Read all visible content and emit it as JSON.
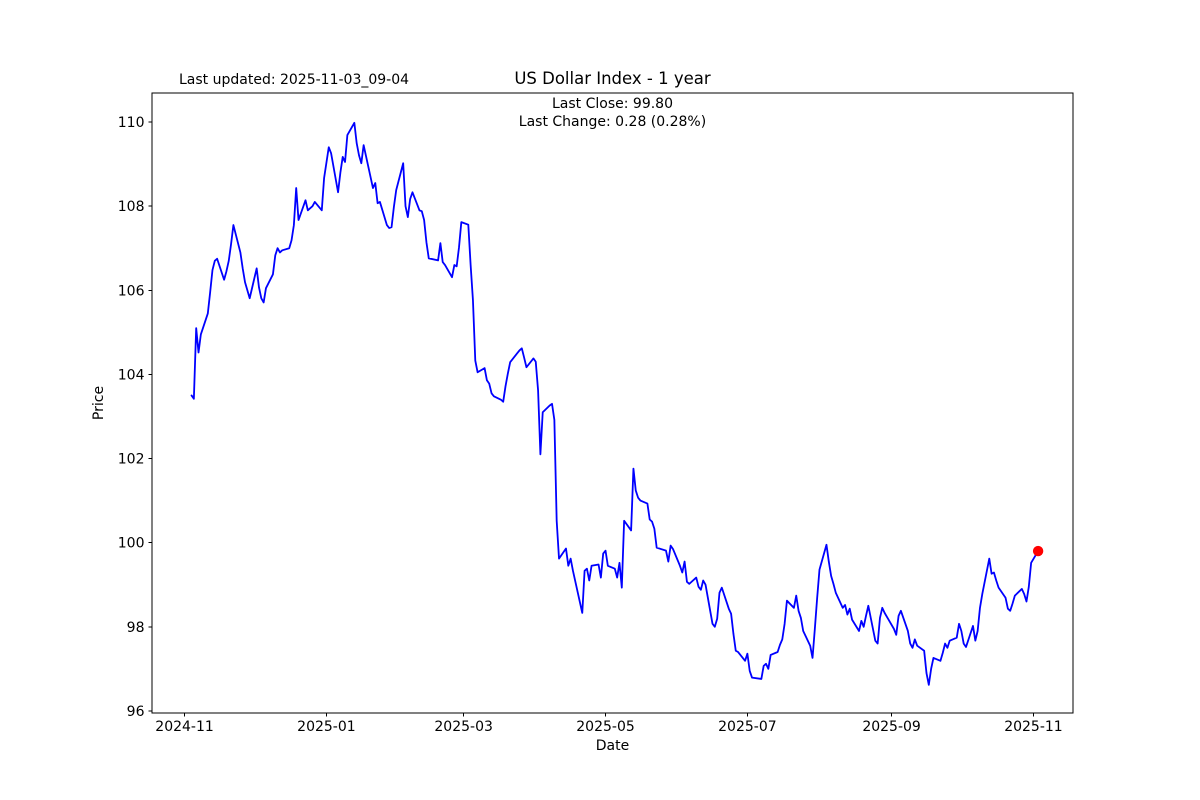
{
  "header": {
    "title": "US Dollar Index - 1 year",
    "last_updated": "Last updated: 2025-11-03_09-04",
    "last_close_label": "Last Close: 99.80",
    "last_change_label": "Last Change: 0.28 (0.28%)"
  },
  "chart_data": {
    "type": "line",
    "title": "US Dollar Index - 1 year",
    "xlabel": "Date",
    "ylabel": "Price",
    "legend": "none",
    "grid": false,
    "last_close": 99.8,
    "last_change": 0.28,
    "last_change_pct": "0.28%",
    "line_color": "#0000ff",
    "marker_color": "#ff0000",
    "text_color": "#000000",
    "background_color": "#ffffff",
    "y_ticks": [
      96,
      98,
      100,
      102,
      104,
      106,
      108,
      110
    ],
    "x_tick_labels": [
      "2024-11",
      "2025-01",
      "2025-03",
      "2025-05",
      "2025-07",
      "2025-09",
      "2025-11"
    ],
    "ylim": [
      95.95,
      110.69
    ],
    "xlim": [
      "2024-10-18",
      "2025-11-18"
    ],
    "series": [
      {
        "name": "US Dollar Index",
        "points": [
          [
            "2024-11-04",
            103.5
          ],
          [
            "2024-11-05",
            103.42
          ],
          [
            "2024-11-06",
            105.1
          ],
          [
            "2024-11-07",
            104.52
          ],
          [
            "2024-11-08",
            104.95
          ],
          [
            "2024-11-11",
            105.45
          ],
          [
            "2024-11-12",
            105.95
          ],
          [
            "2024-11-13",
            106.48
          ],
          [
            "2024-11-14",
            106.7
          ],
          [
            "2024-11-15",
            106.75
          ],
          [
            "2024-11-18",
            106.25
          ],
          [
            "2024-11-19",
            106.45
          ],
          [
            "2024-11-20",
            106.7
          ],
          [
            "2024-11-21",
            107.1
          ],
          [
            "2024-11-22",
            107.55
          ],
          [
            "2024-11-25",
            106.9
          ],
          [
            "2024-11-26",
            106.52
          ],
          [
            "2024-11-27",
            106.19
          ],
          [
            "2024-11-29",
            105.81
          ],
          [
            "2024-12-02",
            106.52
          ],
          [
            "2024-12-03",
            106.07
          ],
          [
            "2024-12-04",
            105.81
          ],
          [
            "2024-12-05",
            105.71
          ],
          [
            "2024-12-06",
            106.05
          ],
          [
            "2024-12-09",
            106.38
          ],
          [
            "2024-12-10",
            106.83
          ],
          [
            "2024-12-11",
            107.0
          ],
          [
            "2024-12-12",
            106.9
          ],
          [
            "2024-12-13",
            106.95
          ],
          [
            "2024-12-16",
            107.0
          ],
          [
            "2024-12-17",
            107.19
          ],
          [
            "2024-12-18",
            107.55
          ],
          [
            "2024-12-19",
            108.43
          ],
          [
            "2024-12-20",
            107.67
          ],
          [
            "2024-12-23",
            108.14
          ],
          [
            "2024-12-24",
            107.9
          ],
          [
            "2024-12-26",
            108.0
          ],
          [
            "2024-12-27",
            108.1
          ],
          [
            "2024-12-30",
            107.9
          ],
          [
            "2024-12-31",
            108.67
          ],
          [
            "2025-01-02",
            109.4
          ],
          [
            "2025-01-03",
            109.26
          ],
          [
            "2025-01-06",
            108.33
          ],
          [
            "2025-01-07",
            108.8
          ],
          [
            "2025-01-08",
            109.17
          ],
          [
            "2025-01-09",
            109.05
          ],
          [
            "2025-01-10",
            109.69
          ],
          [
            "2025-01-13",
            109.98
          ],
          [
            "2025-01-14",
            109.5
          ],
          [
            "2025-01-15",
            109.21
          ],
          [
            "2025-01-16",
            109.02
          ],
          [
            "2025-01-17",
            109.45
          ],
          [
            "2025-01-21",
            108.43
          ],
          [
            "2025-01-22",
            108.55
          ],
          [
            "2025-01-23",
            108.07
          ],
          [
            "2025-01-24",
            108.1
          ],
          [
            "2025-01-27",
            107.55
          ],
          [
            "2025-01-28",
            107.48
          ],
          [
            "2025-01-29",
            107.5
          ],
          [
            "2025-01-30",
            107.98
          ],
          [
            "2025-01-31",
            108.38
          ],
          [
            "2025-02-03",
            109.02
          ],
          [
            "2025-02-04",
            108.0
          ],
          [
            "2025-02-05",
            107.74
          ],
          [
            "2025-02-06",
            108.17
          ],
          [
            "2025-02-07",
            108.33
          ],
          [
            "2025-02-10",
            107.9
          ],
          [
            "2025-02-11",
            107.88
          ],
          [
            "2025-02-12",
            107.67
          ],
          [
            "2025-02-13",
            107.14
          ],
          [
            "2025-02-14",
            106.76
          ],
          [
            "2025-02-18",
            106.71
          ],
          [
            "2025-02-19",
            107.12
          ],
          [
            "2025-02-20",
            106.67
          ],
          [
            "2025-02-21",
            106.6
          ],
          [
            "2025-02-24",
            106.31
          ],
          [
            "2025-02-25",
            106.6
          ],
          [
            "2025-02-26",
            106.57
          ],
          [
            "2025-02-27",
            107.02
          ],
          [
            "2025-02-28",
            107.62
          ],
          [
            "2025-03-03",
            107.56
          ],
          [
            "2025-03-04",
            106.6
          ],
          [
            "2025-03-05",
            105.76
          ],
          [
            "2025-03-06",
            104.33
          ],
          [
            "2025-03-07",
            104.05
          ],
          [
            "2025-03-10",
            104.15
          ],
          [
            "2025-03-11",
            103.86
          ],
          [
            "2025-03-12",
            103.78
          ],
          [
            "2025-03-13",
            103.55
          ],
          [
            "2025-03-14",
            103.48
          ],
          [
            "2025-03-17",
            103.4
          ],
          [
            "2025-03-18",
            103.35
          ],
          [
            "2025-03-19",
            103.72
          ],
          [
            "2025-03-20",
            104.02
          ],
          [
            "2025-03-21",
            104.29
          ],
          [
            "2025-03-24",
            104.5
          ],
          [
            "2025-03-25",
            104.57
          ],
          [
            "2025-03-26",
            104.62
          ],
          [
            "2025-03-27",
            104.4
          ],
          [
            "2025-03-28",
            104.17
          ],
          [
            "2025-03-31",
            104.38
          ],
          [
            "2025-04-01",
            104.3
          ],
          [
            "2025-04-02",
            103.62
          ],
          [
            "2025-04-03",
            102.1
          ],
          [
            "2025-04-04",
            103.1
          ],
          [
            "2025-04-07",
            103.26
          ],
          [
            "2025-04-08",
            103.3
          ],
          [
            "2025-04-09",
            102.92
          ],
          [
            "2025-04-10",
            100.52
          ],
          [
            "2025-04-11",
            99.62
          ],
          [
            "2025-04-14",
            99.86
          ],
          [
            "2025-04-15",
            99.45
          ],
          [
            "2025-04-16",
            99.62
          ],
          [
            "2025-04-17",
            99.33
          ],
          [
            "2025-04-21",
            98.33
          ],
          [
            "2025-04-22",
            99.33
          ],
          [
            "2025-04-23",
            99.38
          ],
          [
            "2025-04-24",
            99.1
          ],
          [
            "2025-04-25",
            99.45
          ],
          [
            "2025-04-28",
            99.48
          ],
          [
            "2025-04-29",
            99.17
          ],
          [
            "2025-04-30",
            99.74
          ],
          [
            "2025-05-01",
            99.81
          ],
          [
            "2025-05-02",
            99.45
          ],
          [
            "2025-05-05",
            99.38
          ],
          [
            "2025-05-06",
            99.17
          ],
          [
            "2025-05-07",
            99.52
          ],
          [
            "2025-05-08",
            98.93
          ],
          [
            "2025-05-09",
            100.52
          ],
          [
            "2025-05-12",
            100.29
          ],
          [
            "2025-05-13",
            101.76
          ],
          [
            "2025-05-14",
            101.24
          ],
          [
            "2025-05-15",
            101.07
          ],
          [
            "2025-05-16",
            101.0
          ],
          [
            "2025-05-19",
            100.93
          ],
          [
            "2025-05-20",
            100.55
          ],
          [
            "2025-05-21",
            100.5
          ],
          [
            "2025-05-22",
            100.33
          ],
          [
            "2025-05-23",
            99.88
          ],
          [
            "2025-05-27",
            99.81
          ],
          [
            "2025-05-28",
            99.55
          ],
          [
            "2025-05-29",
            99.93
          ],
          [
            "2025-05-30",
            99.85
          ],
          [
            "2025-06-02",
            99.45
          ],
          [
            "2025-06-03",
            99.29
          ],
          [
            "2025-06-04",
            99.55
          ],
          [
            "2025-06-05",
            99.07
          ],
          [
            "2025-06-06",
            99.02
          ],
          [
            "2025-06-09",
            99.17
          ],
          [
            "2025-06-10",
            98.95
          ],
          [
            "2025-06-11",
            98.88
          ],
          [
            "2025-06-12",
            99.1
          ],
          [
            "2025-06-13",
            99.0
          ],
          [
            "2025-06-16",
            98.07
          ],
          [
            "2025-06-17",
            98.0
          ],
          [
            "2025-06-18",
            98.19
          ],
          [
            "2025-06-19",
            98.81
          ],
          [
            "2025-06-20",
            98.93
          ],
          [
            "2025-06-23",
            98.43
          ],
          [
            "2025-06-24",
            98.31
          ],
          [
            "2025-06-25",
            97.83
          ],
          [
            "2025-06-26",
            97.43
          ],
          [
            "2025-06-27",
            97.4
          ],
          [
            "2025-06-30",
            97.19
          ],
          [
            "2025-07-01",
            97.36
          ],
          [
            "2025-07-02",
            96.95
          ],
          [
            "2025-07-03",
            96.79
          ],
          [
            "2025-07-07",
            96.76
          ],
          [
            "2025-07-08",
            97.07
          ],
          [
            "2025-07-09",
            97.12
          ],
          [
            "2025-07-10",
            97.0
          ],
          [
            "2025-07-11",
            97.33
          ],
          [
            "2025-07-14",
            97.4
          ],
          [
            "2025-07-15",
            97.57
          ],
          [
            "2025-07-16",
            97.7
          ],
          [
            "2025-07-17",
            98.07
          ],
          [
            "2025-07-18",
            98.62
          ],
          [
            "2025-07-21",
            98.45
          ],
          [
            "2025-07-22",
            98.74
          ],
          [
            "2025-07-23",
            98.38
          ],
          [
            "2025-07-24",
            98.21
          ],
          [
            "2025-07-25",
            97.9
          ],
          [
            "2025-07-28",
            97.55
          ],
          [
            "2025-07-29",
            97.26
          ],
          [
            "2025-07-30",
            97.95
          ],
          [
            "2025-07-31",
            98.69
          ],
          [
            "2025-08-01",
            99.36
          ],
          [
            "2025-08-04",
            99.95
          ],
          [
            "2025-08-05",
            99.55
          ],
          [
            "2025-08-06",
            99.21
          ],
          [
            "2025-08-07",
            99.02
          ],
          [
            "2025-08-08",
            98.81
          ],
          [
            "2025-08-11",
            98.45
          ],
          [
            "2025-08-12",
            98.52
          ],
          [
            "2025-08-13",
            98.29
          ],
          [
            "2025-08-14",
            98.43
          ],
          [
            "2025-08-15",
            98.17
          ],
          [
            "2025-08-18",
            97.9
          ],
          [
            "2025-08-19",
            98.14
          ],
          [
            "2025-08-20",
            98.0
          ],
          [
            "2025-08-21",
            98.26
          ],
          [
            "2025-08-22",
            98.5
          ],
          [
            "2025-08-25",
            97.67
          ],
          [
            "2025-08-26",
            97.6
          ],
          [
            "2025-08-27",
            98.21
          ],
          [
            "2025-08-28",
            98.45
          ],
          [
            "2025-08-29",
            98.33
          ],
          [
            "2025-09-02",
            97.95
          ],
          [
            "2025-09-03",
            97.81
          ],
          [
            "2025-09-04",
            98.26
          ],
          [
            "2025-09-05",
            98.38
          ],
          [
            "2025-09-08",
            97.9
          ],
          [
            "2025-09-09",
            97.6
          ],
          [
            "2025-09-10",
            97.5
          ],
          [
            "2025-09-11",
            97.7
          ],
          [
            "2025-09-12",
            97.55
          ],
          [
            "2025-09-15",
            97.43
          ],
          [
            "2025-09-16",
            96.9
          ],
          [
            "2025-09-17",
            96.62
          ],
          [
            "2025-09-18",
            97.0
          ],
          [
            "2025-09-19",
            97.26
          ],
          [
            "2025-09-22",
            97.19
          ],
          [
            "2025-09-23",
            97.38
          ],
          [
            "2025-09-24",
            97.6
          ],
          [
            "2025-09-25",
            97.5
          ],
          [
            "2025-09-26",
            97.67
          ],
          [
            "2025-09-29",
            97.74
          ],
          [
            "2025-09-30",
            98.07
          ],
          [
            "2025-10-01",
            97.9
          ],
          [
            "2025-10-02",
            97.6
          ],
          [
            "2025-10-03",
            97.52
          ],
          [
            "2025-10-06",
            98.02
          ],
          [
            "2025-10-07",
            97.67
          ],
          [
            "2025-10-08",
            97.9
          ],
          [
            "2025-10-09",
            98.45
          ],
          [
            "2025-10-10",
            98.78
          ],
          [
            "2025-10-13",
            99.62
          ],
          [
            "2025-10-14",
            99.26
          ],
          [
            "2025-10-15",
            99.29
          ],
          [
            "2025-10-16",
            99.1
          ],
          [
            "2025-10-17",
            98.93
          ],
          [
            "2025-10-20",
            98.69
          ],
          [
            "2025-10-21",
            98.43
          ],
          [
            "2025-10-22",
            98.38
          ],
          [
            "2025-10-23",
            98.55
          ],
          [
            "2025-10-24",
            98.74
          ],
          [
            "2025-10-27",
            98.9
          ],
          [
            "2025-10-28",
            98.78
          ],
          [
            "2025-10-29",
            98.6
          ],
          [
            "2025-10-30",
            98.95
          ],
          [
            "2025-10-31",
            99.52
          ],
          [
            "2025-11-03",
            99.8
          ]
        ]
      }
    ]
  }
}
